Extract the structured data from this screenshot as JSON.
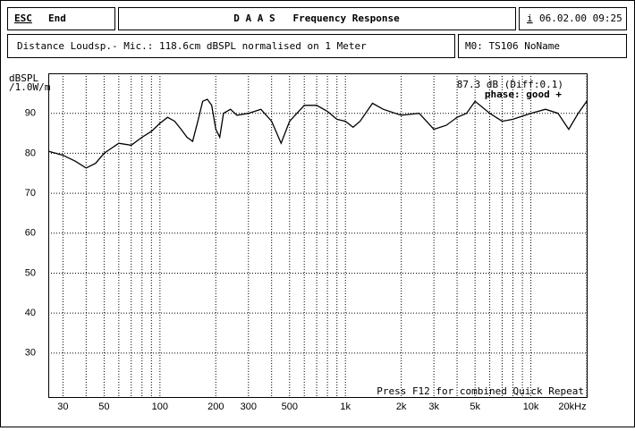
{
  "header": {
    "esc": "ESC",
    "end": "End",
    "title": "D A A S   Frequency Response",
    "info": "i",
    "date": "06.02.00 09:25",
    "distance": "Distance Loudsp.- Mic.: 118.6cm dBSPL normalised on 1 Meter",
    "mic": "M0: TS106 NoName"
  },
  "chart_data": {
    "type": "line",
    "y_label": [
      "dBSPL",
      "/1.0W/m"
    ],
    "annotations": [
      "87.3 dB (Diff:0.1)",
      "phase: good +",
      "Press F12 for combined Quick Repeat"
    ],
    "x": [
      25,
      30,
      35,
      40,
      45,
      50,
      60,
      70,
      80,
      90,
      100,
      110,
      120,
      130,
      140,
      150,
      160,
      170,
      180,
      190,
      200,
      210,
      220,
      240,
      260,
      300,
      350,
      400,
      450,
      500,
      600,
      700,
      800,
      900,
      1000,
      1100,
      1200,
      1400,
      1600,
      2000,
      2500,
      3000,
      3500,
      4000,
      4500,
      5000,
      6000,
      7000,
      8000,
      10000,
      12000,
      14000,
      16000,
      18000,
      20000
    ],
    "series": [
      {
        "color": "#000000",
        "values": [
          80.5,
          79.5,
          78,
          76.3,
          77.5,
          80,
          82.5,
          82,
          84,
          85.5,
          87.5,
          89,
          88,
          86,
          84,
          83,
          88,
          93,
          93.5,
          92,
          86,
          84,
          90,
          91,
          89.5,
          90,
          91,
          88,
          82.5,
          88,
          92,
          92,
          90.5,
          88.5,
          88,
          86.5,
          88,
          92.5,
          91,
          89.5,
          90,
          86,
          87,
          89,
          90,
          93,
          90,
          88,
          88.5,
          90,
          91,
          90,
          86,
          90,
          93
        ]
      }
    ],
    "xlim": [
      25,
      20000
    ],
    "ylim": [
      19,
      100
    ],
    "log_x": true,
    "grid": true,
    "xticks": [
      30,
      50,
      100,
      200,
      300,
      500,
      {
        "value": 1000,
        "label": "1k"
      },
      {
        "value": 2000,
        "label": "2k"
      },
      {
        "value": 3000,
        "label": "3k"
      },
      {
        "value": 5000,
        "label": "5k"
      },
      {
        "value": 10000,
        "label": "10k"
      },
      {
        "value": 20000,
        "label": "20kHz"
      }
    ],
    "xminor": [
      40,
      60,
      70,
      80,
      90,
      400,
      600,
      700,
      800,
      900,
      4000,
      6000,
      7000,
      8000,
      9000
    ],
    "yticks": [
      30,
      40,
      50,
      60,
      70,
      80,
      90
    ]
  }
}
